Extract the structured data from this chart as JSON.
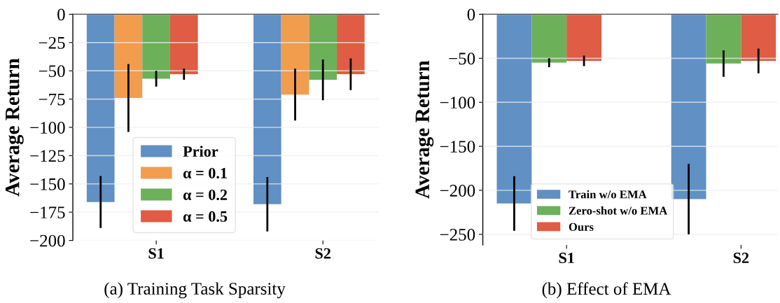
{
  "chart_data": [
    {
      "type": "bar",
      "title": "(a) Training Task Sparsity",
      "ylabel": "Average Return",
      "categories": [
        "S1",
        "S2"
      ],
      "series": [
        {
          "name": "Prior",
          "color": "#6090c4",
          "values": [
            -166,
            -168
          ],
          "errors": [
            23,
            24
          ]
        },
        {
          "name": "α = 0.1",
          "color": "#f29c4e",
          "values": [
            -74,
            -71
          ],
          "errors": [
            30,
            23
          ]
        },
        {
          "name": "α = 0.2",
          "color": "#6cb05a",
          "values": [
            -57,
            -58
          ],
          "errors": [
            7,
            18
          ]
        },
        {
          "name": "α = 0.5",
          "color": "#e05c44",
          "values": [
            -53,
            -53
          ],
          "errors": [
            5,
            14
          ]
        }
      ],
      "ylim": [
        -200,
        0
      ],
      "yticks": [
        0,
        {
          "value": -25,
          "label": "−25"
        },
        {
          "value": -50,
          "label": "−50"
        },
        {
          "value": -75,
          "label": "−75"
        },
        {
          "value": -100,
          "label": "−100"
        },
        {
          "value": -125,
          "label": "−125"
        },
        {
          "value": -150,
          "label": "−150"
        },
        {
          "value": -175,
          "label": "−175"
        },
        {
          "value": -200,
          "label": "−200"
        }
      ],
      "grid": "y",
      "legend": "bottom"
    },
    {
      "type": "bar",
      "title": "(b) Effect of EMA",
      "ylabel": "Average Return",
      "categories": [
        "S1",
        "S2"
      ],
      "series": [
        {
          "name": "Train w/o EMA",
          "color": "#6090c4",
          "values": [
            -215,
            -210
          ],
          "errors": [
            31,
            40
          ]
        },
        {
          "name": "Zero-shot w/o EMA",
          "color": "#6cb05a",
          "values": [
            -55,
            -56
          ],
          "errors": [
            5,
            15
          ]
        },
        {
          "name": "Ours",
          "color": "#e05c44",
          "values": [
            -53,
            -53
          ],
          "errors": [
            6,
            14
          ]
        }
      ],
      "ylim": [
        -262,
        0
      ],
      "yticks": [
        0,
        {
          "value": -50,
          "label": "−50"
        },
        {
          "value": -100,
          "label": "−100"
        },
        {
          "value": -150,
          "label": "−150"
        },
        {
          "value": -200,
          "label": "−200"
        },
        {
          "value": -250,
          "label": "−250"
        }
      ],
      "grid": "y",
      "legend": "bottom"
    }
  ]
}
